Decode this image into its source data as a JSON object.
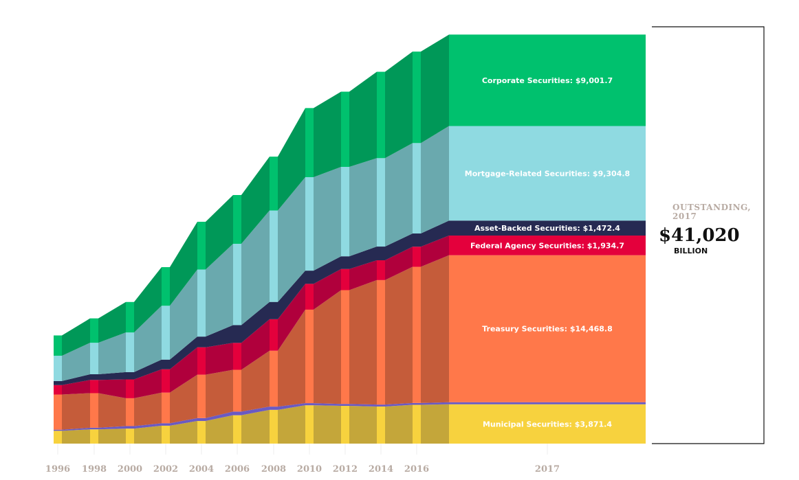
{
  "chart_data": {
    "type": "area",
    "x": [
      "1996",
      "1998",
      "2000",
      "2002",
      "2004",
      "2006",
      "2008",
      "2010",
      "2012",
      "2014",
      "2016",
      "2017"
    ],
    "series": [
      {
        "name": "Municipal Securities",
        "color": "#f7d23e",
        "shade": "#c4a63a",
        "label": "Municipal Securities: $3,871.4",
        "values": [
          1261,
          1403,
          1480,
          1763,
          2226,
          2793,
          3322,
          3772,
          3714,
          3652,
          3818,
          3871.4
        ]
      },
      {
        "name": "Treasury Securities (band)",
        "color": "#6a5ac2",
        "shade": "#6a5ac2",
        "label": "",
        "values": [
          108,
          160,
          245,
          240,
          286,
          358,
          320,
          210,
          190,
          190,
          180,
          200
        ]
      },
      {
        "name": "Treasury Securities",
        "color": "#ff784a",
        "shade": "#c55c3a",
        "label": "Treasury Securities: $14,468.8",
        "values": [
          3460,
          3402,
          2742,
          3018,
          4270,
          4112,
          5500,
          9200,
          11200,
          12250,
          13400,
          14468.8
        ]
      },
      {
        "name": "Federal Agency Securities",
        "color": "#e4003c",
        "shade": "#b0003c",
        "label": "Federal Agency Securities: $1,934.7",
        "values": [
          930,
          1300,
          1850,
          2295,
          2700,
          2650,
          3100,
          2540,
          2080,
          1950,
          1980,
          1934.7
        ]
      },
      {
        "name": "Asset-Backed Securities",
        "color": "#262a52",
        "shade": "#262a52",
        "label": "Asset-Backed Securities: $1,472.4",
        "values": [
          400,
          560,
          720,
          950,
          1050,
          1750,
          1700,
          1300,
          1250,
          1350,
          1300,
          1472.4
        ]
      },
      {
        "name": "Mortgage-Related Securities",
        "color": "#8fdae1",
        "shade": "#6aa9ae",
        "label": "Mortgage-Related Securities: $9,304.8",
        "values": [
          2486,
          3100,
          3900,
          5300,
          6600,
          8000,
          9000,
          9200,
          8800,
          8700,
          8900,
          9304.8
        ]
      },
      {
        "name": "Corporate Securities",
        "color": "#00c16e",
        "shade": "#009858",
        "label": "Corporate Securities: $9,001.7",
        "values": [
          2000,
          2400,
          3000,
          3800,
          4700,
          4800,
          5300,
          6800,
          7400,
          8500,
          9000,
          9001.7
        ]
      }
    ],
    "total": {
      "caption_line1": "OUTSTANDING,",
      "caption_line2": "2017",
      "value": "$41,020",
      "unit": "BILLION"
    },
    "xlabel": "",
    "ylabel": ""
  }
}
